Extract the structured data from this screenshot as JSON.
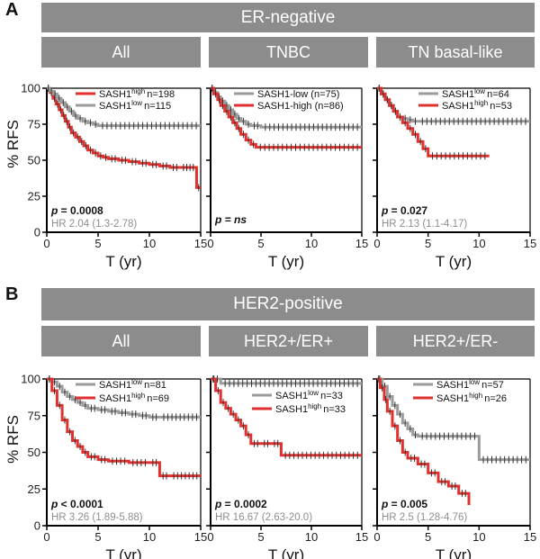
{
  "sections": [
    {
      "letter": "A",
      "title": "ER-negative",
      "y_label": "% RFS"
    },
    {
      "letter": "B",
      "title": "HER2-positive",
      "y_label": "% RFS"
    }
  ],
  "colors": {
    "red": "#e0312f",
    "gray": "#9b9b9b",
    "banner": "#8c8c8c"
  },
  "chart_data": [
    {
      "type": "line",
      "subtitle": "All",
      "xlabel": "T (yr)",
      "ylabel": "% RFS",
      "xlim": [
        0,
        15
      ],
      "ylim": [
        0,
        100
      ],
      "xticks": [
        0,
        5,
        10,
        15
      ],
      "yticks": [
        0,
        25,
        50,
        75,
        100
      ],
      "stat": "p = 0.0008",
      "hr": "HR 2.04 (1.3-2.78)",
      "series": [
        {
          "name": "SASH1",
          "sup": "high",
          "n": "n=198",
          "color": "red",
          "x": [
            0,
            0.3,
            0.6,
            0.9,
            1.2,
            1.5,
            1.8,
            2.1,
            2.4,
            2.8,
            3.2,
            3.6,
            4.0,
            4.5,
            5.0,
            5.5,
            6.0,
            7.0,
            8.0,
            9.0,
            10.0,
            11.0,
            12.0,
            13.0,
            14.6,
            15.0
          ],
          "y": [
            100,
            97,
            93,
            89,
            85,
            81,
            77,
            73,
            69,
            66,
            63,
            60,
            57,
            55,
            53,
            52,
            51,
            50,
            49,
            48,
            47,
            46,
            45,
            45,
            31,
            31
          ]
        },
        {
          "name": "SASH1",
          "sup": "low",
          "n": "n=115",
          "color": "gray",
          "x": [
            0,
            0.3,
            0.6,
            1.0,
            1.4,
            1.8,
            2.2,
            2.6,
            3.0,
            3.5,
            4.0,
            4.5,
            5.0,
            15.0
          ],
          "y": [
            100,
            98,
            96,
            93,
            90,
            87,
            84,
            81,
            79,
            77,
            76,
            75,
            74,
            74
          ]
        }
      ]
    },
    {
      "type": "line",
      "subtitle": "TNBC",
      "xlabel": "T (yr)",
      "ylabel": "% RFS",
      "xlim": [
        0,
        15
      ],
      "ylim": [
        0,
        100
      ],
      "xticks": [
        0,
        5,
        10,
        15
      ],
      "yticks": [
        0,
        25,
        50,
        75,
        100
      ],
      "stat": "p = ns",
      "hr": "",
      "series": [
        {
          "name": "SASH1-low",
          "sup": "",
          "n": "(n=75)",
          "color": "gray",
          "x": [
            0,
            0.3,
            0.7,
            1.0,
            1.4,
            1.8,
            2.2,
            2.6,
            3.0,
            3.5,
            4.0,
            5.0,
            15.0
          ],
          "y": [
            100,
            97,
            94,
            91,
            88,
            85,
            82,
            79,
            77,
            75,
            74,
            73,
            73
          ]
        },
        {
          "name": "SASH1-high",
          "sup": "",
          "n": "(n=86)",
          "color": "red",
          "x": [
            0,
            0.3,
            0.7,
            1.0,
            1.4,
            1.8,
            2.2,
            2.6,
            3.0,
            3.5,
            4.0,
            4.5,
            15.0
          ],
          "y": [
            100,
            96,
            92,
            88,
            84,
            80,
            76,
            72,
            68,
            64,
            61,
            59,
            59
          ]
        }
      ]
    },
    {
      "type": "line",
      "subtitle": "TN basal-like",
      "xlabel": "T (yr)",
      "ylabel": "% RFS",
      "xlim": [
        0,
        15
      ],
      "ylim": [
        0,
        100
      ],
      "xticks": [
        0,
        5,
        10,
        15
      ],
      "yticks": [
        0,
        25,
        50,
        75,
        100
      ],
      "stat": "p = 0.027",
      "hr": "HR 2.13 (1.1-4.17)",
      "series": [
        {
          "name": "SASH1",
          "sup": "low",
          "n": "n=64",
          "color": "gray",
          "x": [
            0,
            0.4,
            0.8,
            1.2,
            1.6,
            2.0,
            2.5,
            3.0,
            3.5,
            4.0,
            15.0
          ],
          "y": [
            100,
            96,
            92,
            88,
            84,
            80,
            79,
            78,
            77,
            77,
            77
          ]
        },
        {
          "name": "SASH1",
          "sup": "high",
          "n": "n=53",
          "color": "red",
          "x": [
            0,
            0.4,
            0.8,
            1.2,
            1.6,
            2.0,
            2.5,
            3.0,
            3.5,
            4.0,
            4.5,
            5.0,
            11.0
          ],
          "y": [
            100,
            96,
            92,
            88,
            84,
            80,
            76,
            72,
            68,
            63,
            58,
            53,
            53
          ]
        }
      ]
    },
    {
      "type": "line",
      "subtitle": "All",
      "xlabel": "T (yr)",
      "ylabel": "% RFS",
      "xlim": [
        0,
        15
      ],
      "ylim": [
        0,
        100
      ],
      "xticks": [
        0,
        5,
        10,
        15
      ],
      "yticks": [
        0,
        25,
        50,
        75,
        100
      ],
      "stat": "p < 0.0001",
      "hr": "HR 3.26 (1.89-5.88)",
      "series": [
        {
          "name": "SASH1",
          "sup": "low",
          "n": "n=81",
          "color": "gray",
          "x": [
            0,
            0.5,
            1.0,
            1.5,
            2.0,
            2.5,
            3.0,
            3.5,
            4.0,
            5.0,
            6.0,
            7.0,
            8.0,
            9.0,
            10.0,
            11.0,
            15.0
          ],
          "y": [
            100,
            98,
            95,
            91,
            88,
            86,
            84,
            82,
            80,
            79,
            78,
            77,
            76,
            75,
            74,
            74,
            74
          ]
        },
        {
          "name": "SASH1",
          "sup": "high",
          "n": "n=69",
          "color": "red",
          "x": [
            0,
            0.5,
            1.0,
            1.5,
            2.0,
            2.5,
            3.0,
            3.5,
            4.0,
            5.0,
            6.0,
            8.0,
            10.0,
            11.0,
            12.0,
            15.0
          ],
          "y": [
            100,
            92,
            82,
            72,
            64,
            58,
            54,
            50,
            47,
            45,
            44,
            43,
            43,
            34,
            34,
            34
          ]
        }
      ]
    },
    {
      "type": "line",
      "subtitle": "HER2+/ER+",
      "xlabel": "T (yr)",
      "ylabel": "% RFS",
      "xlim": [
        0,
        15
      ],
      "ylim": [
        0,
        100
      ],
      "xticks": [
        0,
        5,
        10,
        15
      ],
      "yticks": [
        0,
        25,
        50,
        75,
        100
      ],
      "stat": "p = 0.0002",
      "hr": "HR 16.67 (2.63-20.0)",
      "series": [
        {
          "name": "SASH1",
          "sup": "low",
          "n": "n=33",
          "color": "gray",
          "x": [
            0,
            1.0,
            15.0
          ],
          "y": [
            100,
            97,
            97
          ]
        },
        {
          "name": "SASH1",
          "sup": "high",
          "n": "n=33",
          "color": "red",
          "x": [
            0,
            0.5,
            1.0,
            1.5,
            2.0,
            2.5,
            3.0,
            3.5,
            4.0,
            5.0,
            6.0,
            7.0,
            15.0
          ],
          "y": [
            100,
            92,
            84,
            80,
            76,
            72,
            68,
            62,
            56,
            56,
            56,
            48,
            48
          ]
        }
      ]
    },
    {
      "type": "line",
      "subtitle": "HER2+/ER-",
      "xlabel": "T (yr)",
      "ylabel": "% RFS",
      "xlim": [
        0,
        15
      ],
      "ylim": [
        0,
        100
      ],
      "xticks": [
        0,
        5,
        10,
        15
      ],
      "yticks": [
        0,
        25,
        50,
        75,
        100
      ],
      "stat": "p = 0.005",
      "hr": "HR 2.5 (1.28-4.76)",
      "series": [
        {
          "name": "SASH1",
          "sup": "low",
          "n": "n=57",
          "color": "gray",
          "x": [
            0,
            0.5,
            1.0,
            1.5,
            2.0,
            2.5,
            3.0,
            3.5,
            4.0,
            10.0,
            15.0
          ],
          "y": [
            100,
            95,
            88,
            82,
            76,
            70,
            66,
            62,
            61,
            45,
            45
          ]
        },
        {
          "name": "SASH1",
          "sup": "high",
          "n": "n=26",
          "color": "red",
          "x": [
            0,
            0.3,
            0.7,
            1.0,
            1.5,
            2.0,
            2.5,
            3.0,
            4.0,
            5.0,
            6.0,
            7.0,
            8.0,
            9.0
          ],
          "y": [
            100,
            94,
            86,
            78,
            68,
            58,
            50,
            46,
            42,
            36,
            30,
            27,
            22,
            14
          ]
        }
      ]
    }
  ]
}
